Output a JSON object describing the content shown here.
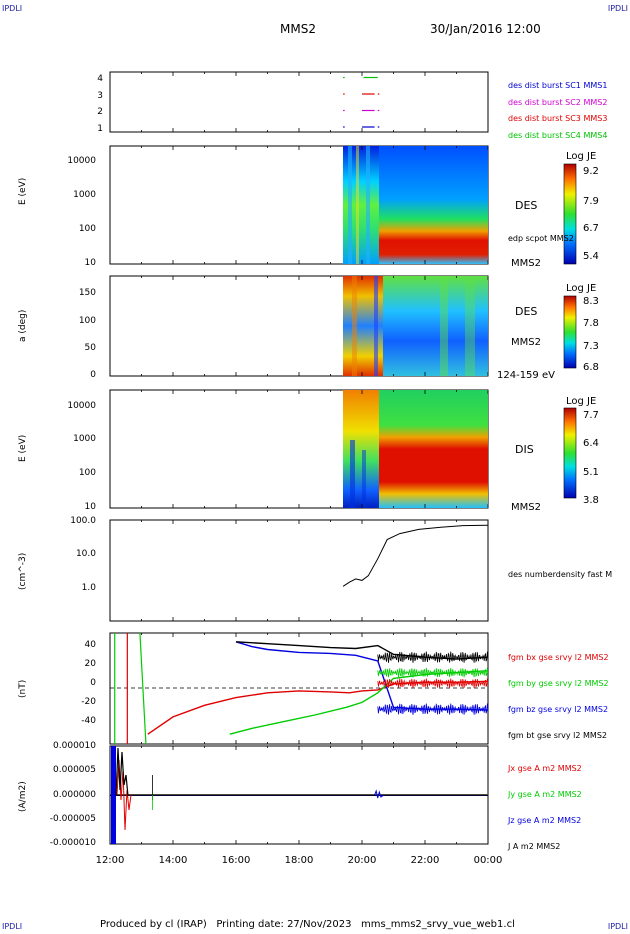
{
  "header": {
    "corner_tl": "IPDLI",
    "corner_tr": "IPDLI",
    "title": "MMS2",
    "datetime": "30/Jan/2016 12:00"
  },
  "footer": {
    "text": "Produced by cl (IRAP)   Printing date: 27/Nov/2023   mms_mms2_srvy_vue_web1.cl",
    "corner_bl": "IPDLI",
    "corner_br": "IPDLI"
  },
  "colors": {
    "c1": "#0000d0",
    "c2": "#d000d0",
    "c3": "#e00000",
    "c4": "#00c000",
    "bx": "#e00000",
    "by": "#00cc00",
    "bz": "#0000e0",
    "bt": "#000000"
  },
  "time_axis": {
    "ticks": [
      "12:00",
      "14:00",
      "16:00",
      "18:00",
      "20:00",
      "22:00",
      "00:00"
    ]
  },
  "chart_data": [
    {
      "type": "scatter",
      "panel": "burst-availability",
      "yticks": [
        "1",
        "2",
        "3",
        "4"
      ],
      "legend": [
        {
          "label": "des dist burst SC1 MMS1",
          "color": "#0000d0"
        },
        {
          "label": "des dist burst SC2 MMS2",
          "color": "#d000d0"
        },
        {
          "label": "des dist burst SC3 MMS3",
          "color": "#e00000"
        },
        {
          "label": "des dist burst SC4 MMS4",
          "color": "#00c000"
        }
      ],
      "segments": [
        {
          "sc": 4,
          "start": 19.4,
          "end": 19.45
        },
        {
          "sc": 4,
          "start": 20.05,
          "end": 20.5
        },
        {
          "sc": 3,
          "start": 19.4,
          "end": 19.45
        },
        {
          "sc": 3,
          "start": 20.0,
          "end": 20.4
        },
        {
          "sc": 3,
          "start": 20.5,
          "end": 20.55
        },
        {
          "sc": 2,
          "start": 19.4,
          "end": 19.45
        },
        {
          "sc": 2,
          "start": 20.0,
          "end": 20.4
        },
        {
          "sc": 2,
          "start": 20.5,
          "end": 20.55
        },
        {
          "sc": 1,
          "start": 19.4,
          "end": 19.45
        },
        {
          "sc": 1,
          "start": 20.0,
          "end": 20.4
        },
        {
          "sc": 1,
          "start": 20.5,
          "end": 20.55
        }
      ]
    },
    {
      "type": "heatmap",
      "panel": "electron-energy",
      "ylabel": "E (eV)",
      "yticks": [
        "10",
        "100",
        "1000",
        "10000"
      ],
      "label": "DES",
      "sublabel": "edp scpot MMS2",
      "corner_label": "MMS2",
      "colorbar": {
        "title": "Log JE",
        "ticks": [
          "9.2",
          "7.9",
          "6.7",
          "5.4"
        ]
      },
      "data_start": 19.4
    },
    {
      "type": "heatmap",
      "panel": "electron-pitch-angle",
      "ylabel": "a (deg)",
      "yticks": [
        "0",
        "50",
        "100",
        "150"
      ],
      "label": "DES",
      "sublabel": "MMS2",
      "corner_label": "124-159 eV",
      "colorbar": {
        "title": "Log JE",
        "ticks": [
          "8.3",
          "7.8",
          "7.3",
          "6.8"
        ]
      },
      "data_start": 19.4
    },
    {
      "type": "heatmap",
      "panel": "ion-energy",
      "ylabel": "E (eV)",
      "yticks": [
        "10",
        "100",
        "1000",
        "10000"
      ],
      "label": "DIS",
      "corner_label": "MMS2",
      "colorbar": {
        "title": "Log JE",
        "ticks": [
          "7.7",
          "6.4",
          "5.1",
          "3.8"
        ]
      },
      "data_start": 19.4
    },
    {
      "type": "line",
      "panel": "density",
      "ylabel": "(cm^-3)",
      "yticks": [
        "1.0",
        "10.0",
        "100.0"
      ],
      "scale": "log",
      "legend": [
        {
          "label": "des numberdensity fast M",
          "color": "#000000"
        }
      ],
      "series": [
        {
          "x": [
            19.4,
            19.6,
            19.8,
            20.0,
            20.2,
            20.5,
            20.8,
            21.2,
            21.8,
            22.5,
            23.2,
            24.0
          ],
          "y": [
            1.2,
            1.6,
            2.0,
            1.8,
            2.5,
            8.0,
            30.0,
            45.0,
            60.0,
            70.0,
            78.0,
            80.0
          ]
        }
      ]
    },
    {
      "type": "line",
      "panel": "magnetic-field",
      "ylabel": "(nT)",
      "yticks": [
        "-40",
        "-20",
        "0",
        "20",
        "40"
      ],
      "ylim": [
        -48,
        48
      ],
      "legend": [
        {
          "label": "fgm bx gse srvy l2 MMS2",
          "color": "#e00000"
        },
        {
          "label": "fgm by gse srvy l2 MMS2",
          "color": "#00cc00"
        },
        {
          "label": "fgm bz gse srvy l2 MMS2",
          "color": "#0000e0"
        },
        {
          "label": "fgm bt gse srvy l2 MMS2",
          "color": "#000000"
        }
      ],
      "series": [
        {
          "x": [
            13.2,
            14.0,
            15.0,
            16.0,
            17.0,
            18.0,
            19.0,
            19.6,
            20.0,
            20.5,
            21.0,
            22.0,
            23.0,
            24.0
          ],
          "y": [
            -48,
            -30,
            -18,
            -10,
            -5,
            -3,
            -4,
            -5,
            -3,
            -2,
            4,
            6,
            6,
            7
          ]
        },
        {
          "x": [
            15.8,
            16.5,
            17.5,
            18.5,
            19.5,
            20.0,
            20.5,
            21.0,
            22.0,
            23.0,
            24.0
          ],
          "y": [
            -48,
            -42,
            -35,
            -28,
            -20,
            -15,
            -5,
            10,
            14,
            16,
            18
          ]
        },
        {
          "x": [
            16.0,
            16.5,
            17.0,
            18.0,
            19.0,
            19.8,
            20.5,
            21.0,
            22.0,
            23.0,
            24.0
          ],
          "y": [
            48,
            43,
            40,
            37,
            36,
            34,
            28,
            -20,
            -22,
            -22,
            -23
          ]
        },
        {
          "x": [
            16.0,
            17.0,
            18.0,
            19.0,
            19.8,
            20.5,
            21.0,
            22.0,
            23.0,
            24.0
          ],
          "y": [
            48,
            46,
            44,
            42,
            41,
            44,
            35,
            32,
            30,
            32
          ]
        }
      ]
    },
    {
      "type": "line",
      "panel": "current-density",
      "ylabel": "(A/m2)",
      "yticks": [
        "-0.000010",
        "-0.000005",
        "0.000000",
        "0.000005",
        "0.000010"
      ],
      "ylim": [
        -1e-05,
        1e-05
      ],
      "legend": [
        {
          "label": "Jx gse A m2 MMS2",
          "color": "#e00000"
        },
        {
          "label": "Jy gse A m2 MMS2",
          "color": "#00cc00"
        },
        {
          "label": "Jz gse A m2 MMS2",
          "color": "#0000e0"
        },
        {
          "label": "J A m2 MMS2",
          "color": "#000000"
        }
      ]
    }
  ]
}
